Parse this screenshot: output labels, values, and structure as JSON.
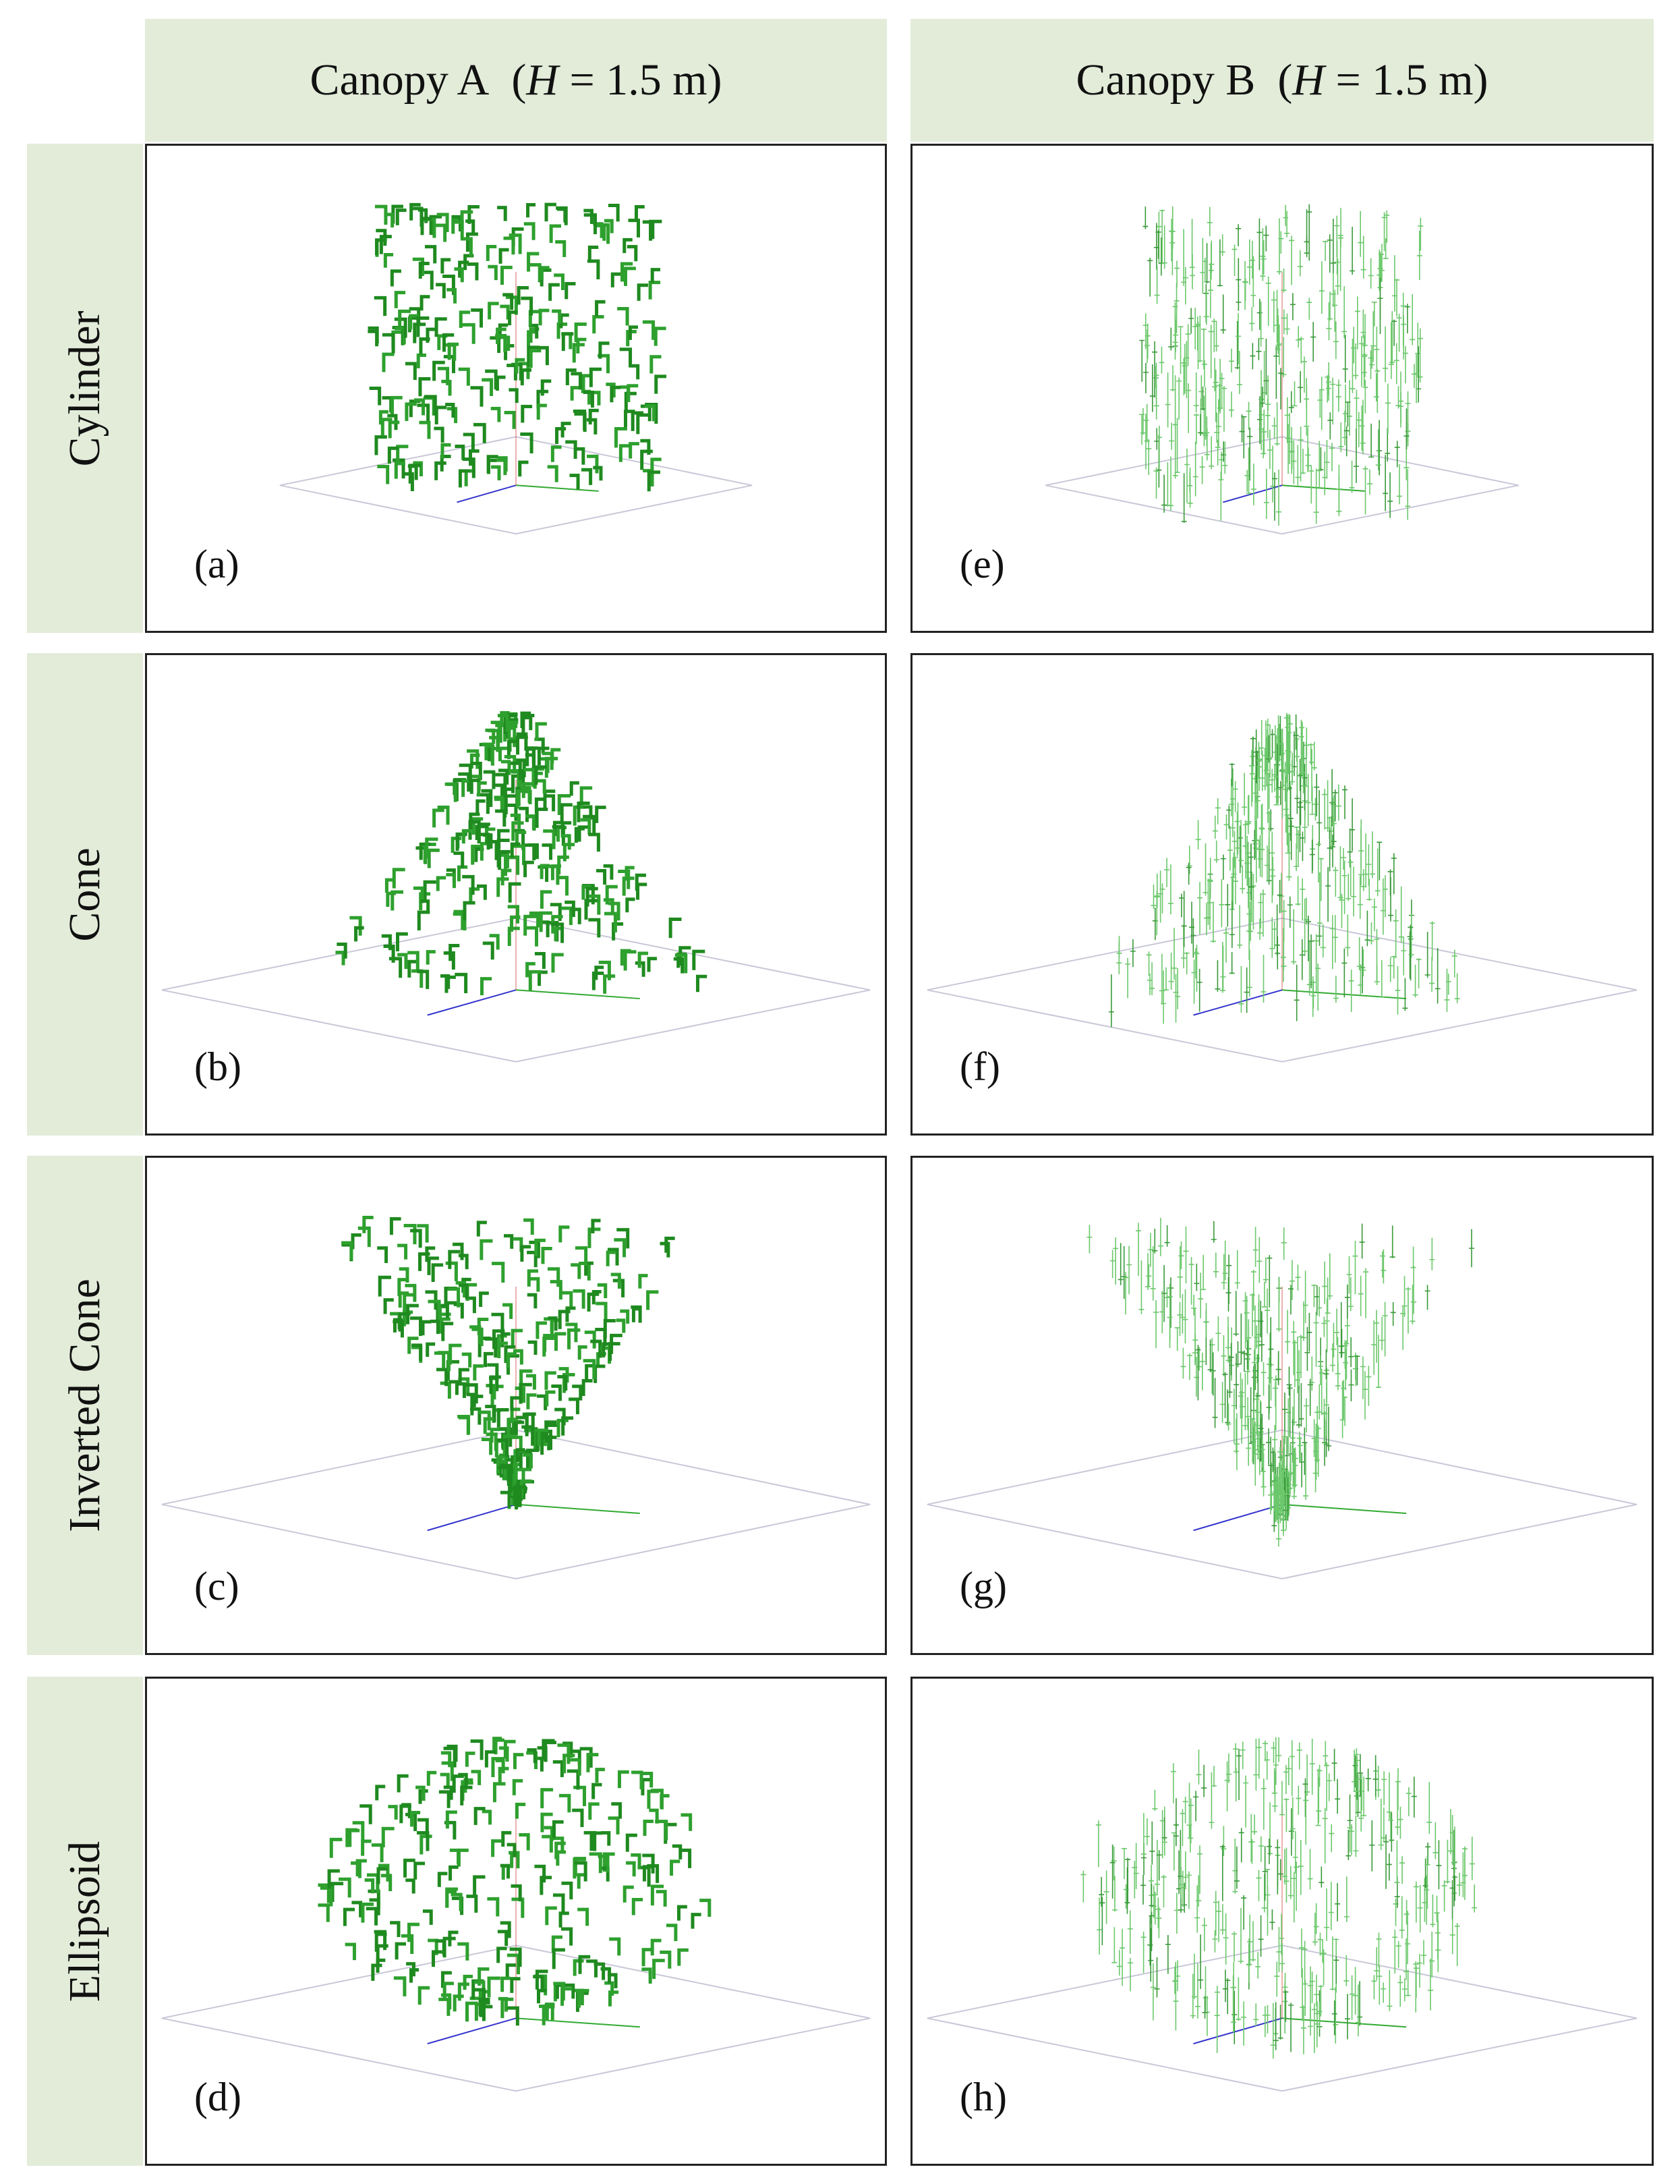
{
  "columns": [
    {
      "canopy": "Canopy A",
      "height_var": "H",
      "height_value": "= 1.5 m"
    },
    {
      "canopy": "Canopy B",
      "height_var": "H",
      "height_value": "= 1.5 m"
    }
  ],
  "rows": [
    "Cylinder",
    "Cone",
    "Inverted Cone",
    "Ellipsoid"
  ],
  "panels": [
    {
      "label": "(a)",
      "shape": "cylinder",
      "canopy": "A"
    },
    {
      "label": "(e)",
      "shape": "cylinder",
      "canopy": "B"
    },
    {
      "label": "(b)",
      "shape": "cone",
      "canopy": "A"
    },
    {
      "label": "(f)",
      "shape": "cone",
      "canopy": "B"
    },
    {
      "label": "(c)",
      "shape": "inverted-cone",
      "canopy": "A"
    },
    {
      "label": "(g)",
      "shape": "inverted-cone",
      "canopy": "B"
    },
    {
      "label": "(d)",
      "shape": "ellipsoid",
      "canopy": "A"
    },
    {
      "label": "(h)",
      "shape": "ellipsoid",
      "canopy": "B"
    }
  ],
  "colors": {
    "header_bg": "#e2ecd9",
    "leaf_dark": "#1f8a1f",
    "leaf_light": "#6cc86c",
    "axis_x": "#3333cc",
    "axis_y": "#33aa33",
    "axis_z": "#cc3333",
    "ground": "#c8c8d8"
  }
}
